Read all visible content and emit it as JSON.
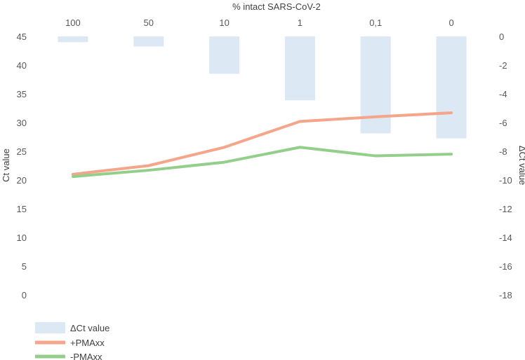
{
  "chart_data": {
    "type": "bar+line",
    "x_axis_title": "% intact SARS-CoV-2",
    "categories": [
      "100",
      "50",
      "10",
      "1",
      "0,1",
      "0"
    ],
    "left_axis": {
      "label": "Ct value",
      "range": [
        0,
        45
      ],
      "ticks": [
        "0",
        "5",
        "10",
        "15",
        "20",
        "25",
        "30",
        "35",
        "40",
        "45"
      ]
    },
    "right_axis": {
      "label": "ΔCt value",
      "range": [
        -18,
        0
      ],
      "ticks": [
        "0",
        "-2",
        "-4",
        "-6",
        "-8",
        "-10",
        "-12",
        "-14",
        "-16",
        "-18"
      ]
    },
    "bars": {
      "name": "ΔCt value",
      "axis": "right",
      "color": "#dde8f5",
      "values": [
        -0.4,
        -0.7,
        -2.6,
        -4.45,
        -6.75,
        -7.1
      ]
    },
    "series": [
      {
        "name": "+PMAxx",
        "axis": "left",
        "color": "#f4a58a",
        "values": [
          21.0,
          22.5,
          25.7,
          30.2,
          31.0,
          31.7
        ]
      },
      {
        "name": "-PMAxx",
        "axis": "left",
        "color": "#93cf8a",
        "values": [
          20.6,
          21.7,
          23.1,
          25.7,
          24.2,
          24.5
        ]
      }
    ],
    "legend": {
      "placement": "bottom-left",
      "entries": [
        "ΔCt value",
        "+PMAxx",
        "-PMAxx"
      ]
    },
    "grid": false
  }
}
